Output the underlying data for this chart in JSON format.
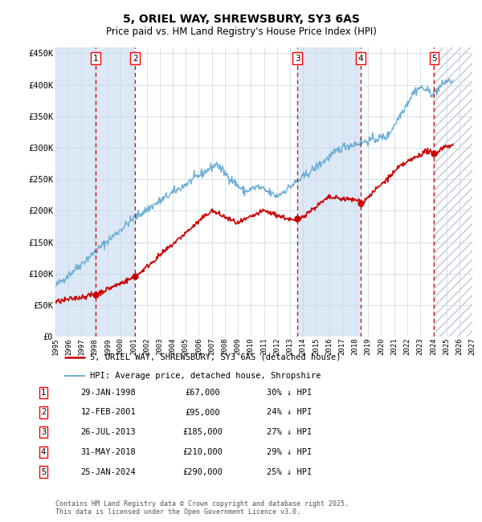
{
  "title": "5, ORIEL WAY, SHREWSBURY, SY3 6AS",
  "subtitle": "Price paid vs. HM Land Registry's House Price Index (HPI)",
  "xlim": [
    1995.0,
    2027.0
  ],
  "ylim": [
    0,
    460000
  ],
  "yticks": [
    0,
    50000,
    100000,
    150000,
    200000,
    250000,
    300000,
    350000,
    400000,
    450000
  ],
  "ytick_labels": [
    "£0",
    "£50K",
    "£100K",
    "£150K",
    "£200K",
    "£250K",
    "£300K",
    "£350K",
    "£400K",
    "£450K"
  ],
  "xticks": [
    1995,
    1996,
    1997,
    1998,
    1999,
    2000,
    2001,
    2002,
    2003,
    2004,
    2005,
    2006,
    2007,
    2008,
    2009,
    2010,
    2011,
    2012,
    2013,
    2014,
    2015,
    2016,
    2017,
    2018,
    2019,
    2020,
    2021,
    2022,
    2023,
    2024,
    2025,
    2026,
    2027
  ],
  "sales": [
    {
      "num": 1,
      "date_str": "29-JAN-1998",
      "year": 1998.08,
      "price": 67000,
      "pct": "30%",
      "dir": "↓"
    },
    {
      "num": 2,
      "date_str": "12-FEB-2001",
      "year": 2001.12,
      "price": 95000,
      "pct": "24%",
      "dir": "↓"
    },
    {
      "num": 3,
      "date_str": "26-JUL-2013",
      "year": 2013.57,
      "price": 185000,
      "pct": "27%",
      "dir": "↓"
    },
    {
      "num": 4,
      "date_str": "31-MAY-2018",
      "year": 2018.42,
      "price": 210000,
      "pct": "29%",
      "dir": "↓"
    },
    {
      "num": 5,
      "date_str": "25-JAN-2024",
      "year": 2024.07,
      "price": 290000,
      "pct": "25%",
      "dir": "↓"
    }
  ],
  "hpi_color": "#6baed6",
  "price_color": "#cc0000",
  "bg_color": "#ffffff",
  "grid_color": "#c8d4e0",
  "shade_color": "#dce8f5",
  "hatch_color": "#c0c8d8",
  "vline_color": "#cc0000",
  "footnote": "Contains HM Land Registry data © Crown copyright and database right 2025.\nThis data is licensed under the Open Government Licence v3.0.",
  "legend_house_label": "5, ORIEL WAY, SHREWSBURY, SY3 6AS (detached house)",
  "legend_hpi_label": "HPI: Average price, detached house, Shropshire"
}
